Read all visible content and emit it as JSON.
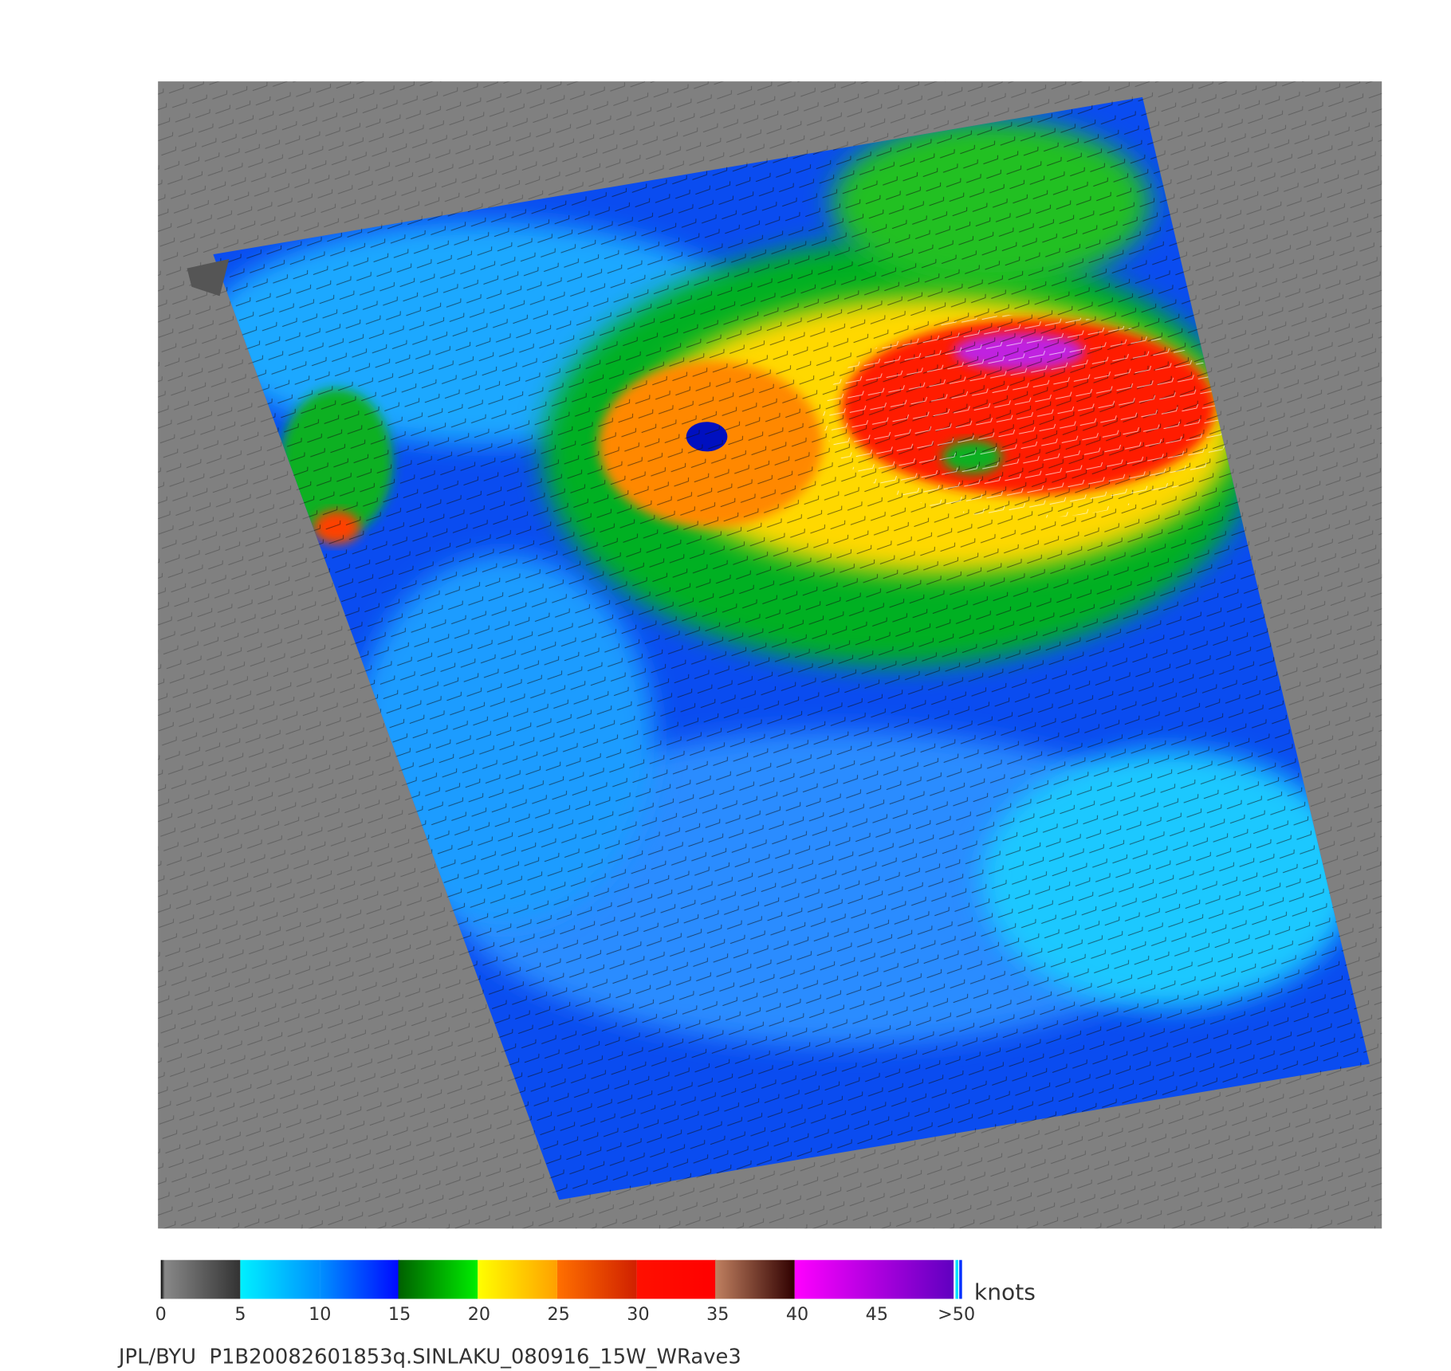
{
  "colorbar": {
    "ticks": [
      0,
      5,
      10,
      15,
      20,
      25,
      30,
      35,
      40,
      45,
      {
        "value": 50,
        "label": ">50"
      }
    ],
    "unit": "knots"
  },
  "footer": "JPL/BYU  P1B20082601853q.SINLAKU_080916_15W_WRave3"
}
